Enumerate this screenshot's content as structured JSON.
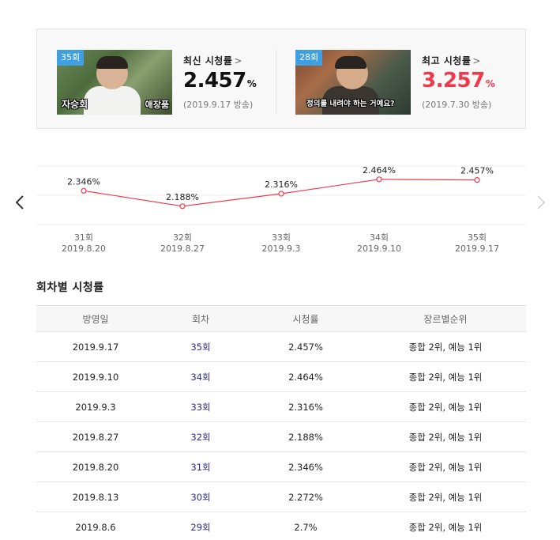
{
  "summary": {
    "latest": {
      "badge": "35회",
      "thumb_caption_left": "자승회",
      "thumb_caption_right": "애장품",
      "label": "최신 시청률",
      "value": "2.457",
      "unit": "%",
      "date": "(2019.9.17 방송)"
    },
    "highest": {
      "badge": "28회",
      "thumb_caption": "정의를 내려야 하는 거예요?",
      "label": "최고 시청률",
      "value": "3.257",
      "unit": "%",
      "date": "(2019.7.30 방송)"
    },
    "chevron": ">",
    "colors": {
      "highest_value": "#f0384b",
      "badge": "#3f9fe0"
    }
  },
  "chart_data": {
    "type": "line",
    "x": [
      "31회",
      "32회",
      "33회",
      "34회",
      "35회"
    ],
    "dates": [
      "2019.8.20",
      "2019.8.27",
      "2019.9.3",
      "2019.9.10",
      "2019.9.17"
    ],
    "values": [
      2.346,
      2.188,
      2.316,
      2.464,
      2.457
    ],
    "data_labels": [
      "2.346%",
      "2.188%",
      "2.316%",
      "2.464%",
      "2.457%"
    ],
    "ylim": [
      2.0,
      2.6
    ],
    "grid": true,
    "line_color": "#f0384b"
  },
  "nav": {
    "prev_icon": "chevron-left-icon",
    "next_icon": "chevron-right-icon"
  },
  "section_title": "회차별 시청률",
  "table": {
    "headers": [
      "방영일",
      "회차",
      "시청률",
      "장르별순위"
    ],
    "rows": [
      {
        "date": "2019.9.17",
        "episode": "35회",
        "rating": "2.457%",
        "rank": "종합 2위, 예능 1위"
      },
      {
        "date": "2019.9.10",
        "episode": "34회",
        "rating": "2.464%",
        "rank": "종합 2위, 예능 1위"
      },
      {
        "date": "2019.9.3",
        "episode": "33회",
        "rating": "2.316%",
        "rank": "종합 2위, 예능 1위"
      },
      {
        "date": "2019.8.27",
        "episode": "32회",
        "rating": "2.188%",
        "rank": "종합 2위, 예능 1위"
      },
      {
        "date": "2019.8.20",
        "episode": "31회",
        "rating": "2.346%",
        "rank": "종합 2위, 예능 1위"
      },
      {
        "date": "2019.8.13",
        "episode": "30회",
        "rating": "2.272%",
        "rank": "종합 2위, 예능 1위"
      },
      {
        "date": "2019.8.6",
        "episode": "29회",
        "rating": "2.7%",
        "rank": "종합 2위, 예능 1위"
      }
    ]
  }
}
